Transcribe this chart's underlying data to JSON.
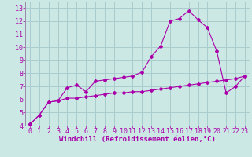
{
  "xlabel": "Windchill (Refroidissement éolien,°C)",
  "bg_color": "#cce8e4",
  "grid_color": "#aacccc",
  "line_color": "#aa00aa",
  "spine_color": "#9988aa",
  "line1_x": [
    0,
    1,
    2,
    3,
    4,
    5,
    6,
    7,
    8,
    9,
    10,
    11,
    12,
    13,
    14,
    15,
    16,
    17,
    18,
    19,
    20,
    21,
    22,
    23
  ],
  "line1_y": [
    4.1,
    4.8,
    5.8,
    5.9,
    6.9,
    7.1,
    6.6,
    7.4,
    7.5,
    7.6,
    7.7,
    7.8,
    8.1,
    9.3,
    10.1,
    12.0,
    12.2,
    12.8,
    12.1,
    11.5,
    9.7,
    6.5,
    7.0,
    7.8
  ],
  "line2_x": [
    0,
    1,
    2,
    3,
    4,
    5,
    6,
    7,
    8,
    9,
    10,
    11,
    12,
    13,
    14,
    15,
    16,
    17,
    18,
    19,
    20,
    21,
    22,
    23
  ],
  "line2_y": [
    4.1,
    4.8,
    5.8,
    5.9,
    6.1,
    6.1,
    6.2,
    6.3,
    6.4,
    6.5,
    6.5,
    6.6,
    6.6,
    6.7,
    6.8,
    6.9,
    7.0,
    7.1,
    7.2,
    7.3,
    7.4,
    7.5,
    7.6,
    7.8
  ],
  "xlim": [
    -0.5,
    23.5
  ],
  "ylim": [
    4,
    13.5
  ],
  "xticks": [
    0,
    1,
    2,
    3,
    4,
    5,
    6,
    7,
    8,
    9,
    10,
    11,
    12,
    13,
    14,
    15,
    16,
    17,
    18,
    19,
    20,
    21,
    22,
    23
  ],
  "yticks": [
    4,
    5,
    6,
    7,
    8,
    9,
    10,
    11,
    12,
    13
  ],
  "tick_fontsize": 6.0,
  "xlabel_fontsize": 6.5
}
